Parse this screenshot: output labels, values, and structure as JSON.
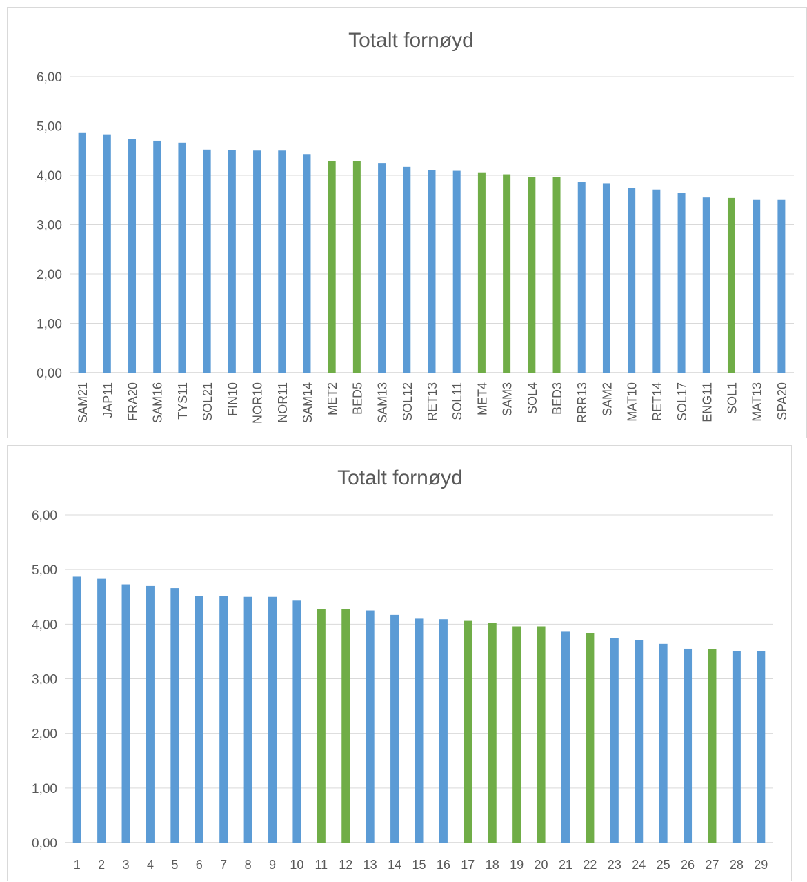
{
  "colors": {
    "blue": "#5b9bd5",
    "green": "#70ad47"
  },
  "chart_data": [
    {
      "type": "bar",
      "title": "Totalt fornøyd",
      "xlabel": "",
      "ylabel": "",
      "ylim": [
        0,
        6
      ],
      "yticks": [
        "0,00",
        "1,00",
        "2,00",
        "3,00",
        "4,00",
        "5,00",
        "6,00"
      ],
      "grid": true,
      "legend": "none",
      "categories": [
        "SAM21",
        "JAP11",
        "FRA20",
        "SAM16",
        "TYS11",
        "SOL21",
        "FIN10",
        "NOR10",
        "NOR11",
        "SAM14",
        "MET2",
        "BED5",
        "SAM13",
        "SOL12",
        "RET13",
        "SOL11",
        "MET4",
        "SAM3",
        "SOL4",
        "BED3",
        "RRR13",
        "SAM2",
        "MAT10",
        "RET14",
        "SOL17",
        "ENG11",
        "SOL1",
        "MAT13",
        "SPA20"
      ],
      "values": [
        4.87,
        4.83,
        4.73,
        4.7,
        4.66,
        4.52,
        4.51,
        4.5,
        4.5,
        4.43,
        4.28,
        4.28,
        4.25,
        4.17,
        4.1,
        4.09,
        4.06,
        4.02,
        3.96,
        3.96,
        3.86,
        3.84,
        3.74,
        3.71,
        3.64,
        3.55,
        3.54,
        3.5,
        3.5
      ],
      "bar_colors": [
        "blue",
        "blue",
        "blue",
        "blue",
        "blue",
        "blue",
        "blue",
        "blue",
        "blue",
        "blue",
        "green",
        "green",
        "blue",
        "blue",
        "blue",
        "blue",
        "green",
        "green",
        "green",
        "green",
        "blue",
        "blue",
        "blue",
        "blue",
        "blue",
        "blue",
        "green",
        "blue",
        "blue"
      ]
    },
    {
      "type": "bar",
      "title": "Totalt fornøyd",
      "xlabel": "",
      "ylabel": "",
      "ylim": [
        0,
        6
      ],
      "yticks": [
        "0,00",
        "1,00",
        "2,00",
        "3,00",
        "4,00",
        "5,00",
        "6,00"
      ],
      "grid": true,
      "legend": "none",
      "categories": [
        "1",
        "2",
        "3",
        "4",
        "5",
        "6",
        "7",
        "8",
        "9",
        "10",
        "11",
        "12",
        "13",
        "14",
        "15",
        "16",
        "17",
        "18",
        "19",
        "20",
        "21",
        "22",
        "23",
        "24",
        "25",
        "26",
        "27",
        "28",
        "29"
      ],
      "values": [
        4.87,
        4.83,
        4.73,
        4.7,
        4.66,
        4.52,
        4.51,
        4.5,
        4.5,
        4.43,
        4.28,
        4.28,
        4.25,
        4.17,
        4.1,
        4.09,
        4.06,
        4.02,
        3.96,
        3.96,
        3.86,
        3.84,
        3.74,
        3.71,
        3.64,
        3.55,
        3.54,
        3.5,
        3.5
      ],
      "bar_colors": [
        "blue",
        "blue",
        "blue",
        "blue",
        "blue",
        "blue",
        "blue",
        "blue",
        "blue",
        "blue",
        "green",
        "green",
        "blue",
        "blue",
        "blue",
        "blue",
        "green",
        "green",
        "green",
        "green",
        "blue",
        "green",
        "blue",
        "blue",
        "blue",
        "blue",
        "green",
        "blue",
        "blue"
      ]
    }
  ]
}
